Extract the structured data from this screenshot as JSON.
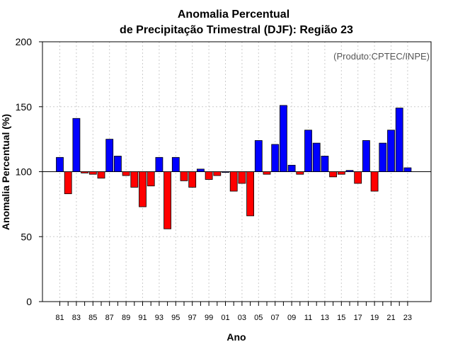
{
  "chart_data": {
    "type": "bar",
    "title_line1": "Anomalia Percentual",
    "title_line2": "de Precipitação Trimestral (DJF): Região 23",
    "xlabel": "Ano",
    "ylabel": "Anomalia Percentual (%)",
    "credit": "(Produto:CPTEC/INPE)",
    "baseline": 100,
    "ylim": [
      0,
      200
    ],
    "yticks": [
      0,
      50,
      100,
      150,
      200
    ],
    "grid": true,
    "colors": {
      "above": "#0000ff",
      "below": "#ff0000",
      "edge": "#000000",
      "grid": "#cccccc"
    },
    "xtick_labels": [
      "81",
      "83",
      "85",
      "87",
      "89",
      "91",
      "93",
      "95",
      "97",
      "99",
      "01",
      "03",
      "05",
      "07",
      "09",
      "11",
      "13",
      "15",
      "17",
      "19",
      "21",
      "23"
    ],
    "categories": [
      "81",
      "82",
      "83",
      "84",
      "85",
      "86",
      "87",
      "88",
      "89",
      "90",
      "91",
      "92",
      "93",
      "94",
      "95",
      "96",
      "97",
      "98",
      "99",
      "00",
      "01",
      "02",
      "03",
      "04",
      "05",
      "06",
      "07",
      "08",
      "09",
      "10",
      "11",
      "12",
      "13",
      "14",
      "15",
      "16",
      "17",
      "18",
      "19",
      "20",
      "21",
      "22",
      "23"
    ],
    "values": [
      111,
      83,
      141,
      99,
      98,
      95,
      125,
      112,
      97,
      88,
      73,
      89,
      111,
      56,
      111,
      93,
      88,
      102,
      94,
      97,
      100,
      85,
      91,
      66,
      124,
      98,
      121,
      151,
      105,
      98,
      132,
      122,
      112,
      96,
      98,
      101,
      91,
      124,
      85,
      122,
      132,
      149,
      103
    ]
  }
}
